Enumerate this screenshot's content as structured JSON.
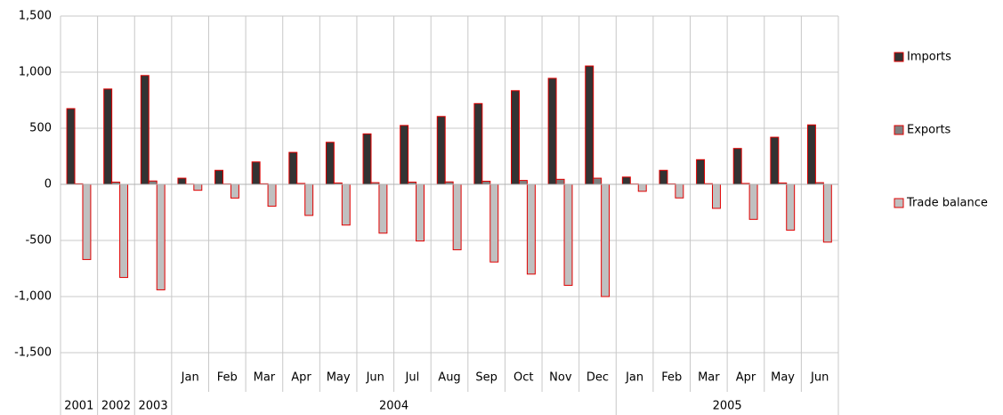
{
  "chart_data": {
    "type": "bar",
    "categories": [
      null,
      null,
      null,
      "Jan",
      "Feb",
      "Mar",
      "Apr",
      "May",
      "Jun",
      "Jul",
      "Aug",
      "Sep",
      "Oct",
      "Nov",
      "Dec",
      "Jan",
      "Feb",
      "Mar",
      "Apr",
      "May",
      "Jun"
    ],
    "category_groups": [
      "2001",
      "2002",
      "2003",
      "2004",
      "2004",
      "2004",
      "2004",
      "2004",
      "2004",
      "2004",
      "2004",
      "2004",
      "2004",
      "2004",
      "2004",
      "2005",
      "2005",
      "2005",
      "2005",
      "2005",
      "2005"
    ],
    "series": [
      {
        "name": "Imports",
        "color": "#333333",
        "values": [
          675,
          850,
          970,
          55,
          125,
          200,
          285,
          375,
          450,
          525,
          605,
          720,
          835,
          945,
          1055,
          65,
          125,
          220,
          320,
          420,
          530
        ]
      },
      {
        "name": "Exports",
        "color": "#808080",
        "values": [
          5,
          20,
          30,
          2,
          3,
          5,
          8,
          12,
          15,
          20,
          22,
          28,
          35,
          45,
          55,
          3,
          4,
          6,
          8,
          12,
          15
        ]
      },
      {
        "name": "Trade balance",
        "color": "#c0c0c0",
        "values": [
          -670,
          -830,
          -940,
          -53,
          -122,
          -195,
          -277,
          -363,
          -435,
          -505,
          -583,
          -692,
          -800,
          -900,
          -1000,
          -62,
          -121,
          -214,
          -312,
          -408,
          -515
        ]
      }
    ],
    "bar_stroke": "#e00000",
    "ylim": [
      -1500,
      1500
    ],
    "yticks": [
      {
        "value": -1500,
        "label": "-1,500"
      },
      {
        "value": -1000,
        "label": "-1,000"
      },
      -500,
      0,
      500,
      {
        "value": 1000,
        "label": "1,000"
      },
      {
        "value": 1500,
        "label": "1,500"
      }
    ],
    "grid": true,
    "legend": "right"
  }
}
